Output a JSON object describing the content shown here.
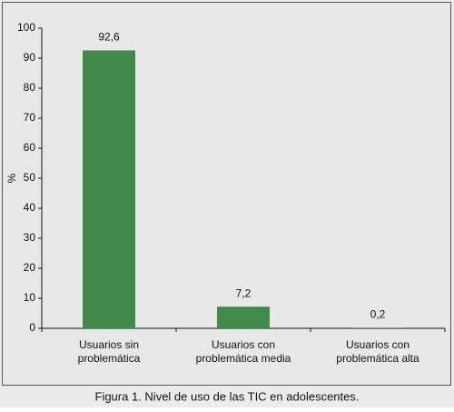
{
  "chart_data": {
    "type": "bar",
    "caption": "Figura 1. Nivel de uso de las TIC en adolescentes.",
    "ylabel": "%",
    "categories": [
      [
        "Usuarios sin",
        "problemática"
      ],
      [
        "Usuarios con",
        "problemática media"
      ],
      [
        "Usuarios con",
        "problemática alta"
      ]
    ],
    "values": [
      92.6,
      7.2,
      0.2
    ],
    "value_labels": [
      "92,6",
      "7,2",
      "0,2"
    ],
    "color": "#3f8a4a",
    "ylim": [
      0,
      100
    ],
    "yticks": [
      0,
      10,
      20,
      30,
      40,
      50,
      60,
      70,
      80,
      90,
      100
    ],
    "grid": false
  }
}
